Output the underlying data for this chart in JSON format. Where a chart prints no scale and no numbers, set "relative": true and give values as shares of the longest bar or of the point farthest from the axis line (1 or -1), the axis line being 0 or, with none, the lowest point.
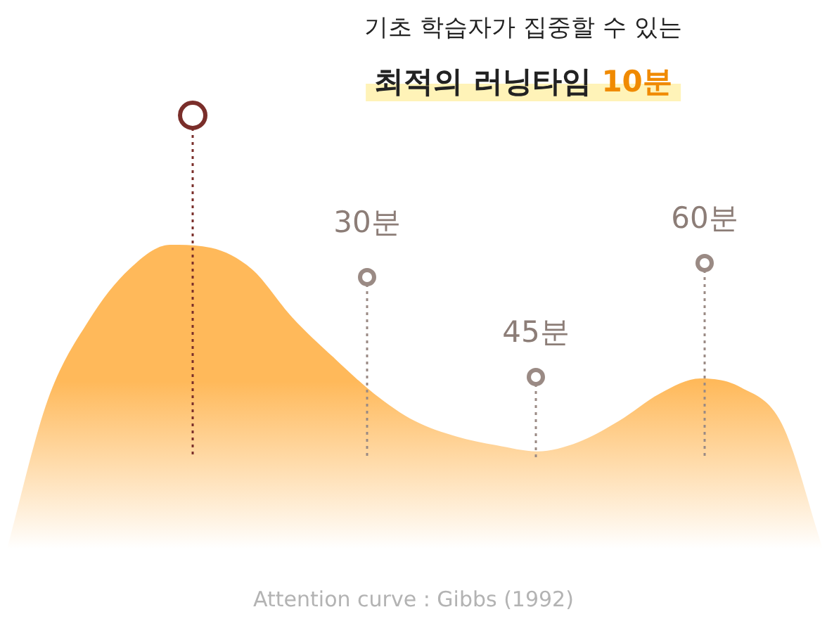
{
  "chart_data": {
    "type": "area",
    "title": "기초 학습자가 집중할 수 있는",
    "subtitle": "최적의 러닝타임 10분",
    "relative": true,
    "categories": [
      null,
      null,
      null,
      null,
      null,
      null,
      null,
      null,
      null,
      null,
      null,
      null,
      null,
      null,
      null,
      null,
      null,
      null,
      null,
      null,
      null
    ],
    "series": [
      {
        "color": "#ffb95a",
        "values": [
          0,
          0.49,
          0.75,
          0.92,
          1,
          0.99,
          0.92,
          0.76,
          0.63,
          0.51,
          0.42,
          0.37,
          0.34,
          0.32,
          0.35,
          0.42,
          0.51,
          0.56,
          0.53,
          0.41,
          0
        ]
      }
    ],
    "annotations": [
      "30분",
      "45분",
      "60분",
      "Attention curve : Gibbs (1992)"
    ],
    "legend": false
  }
}
